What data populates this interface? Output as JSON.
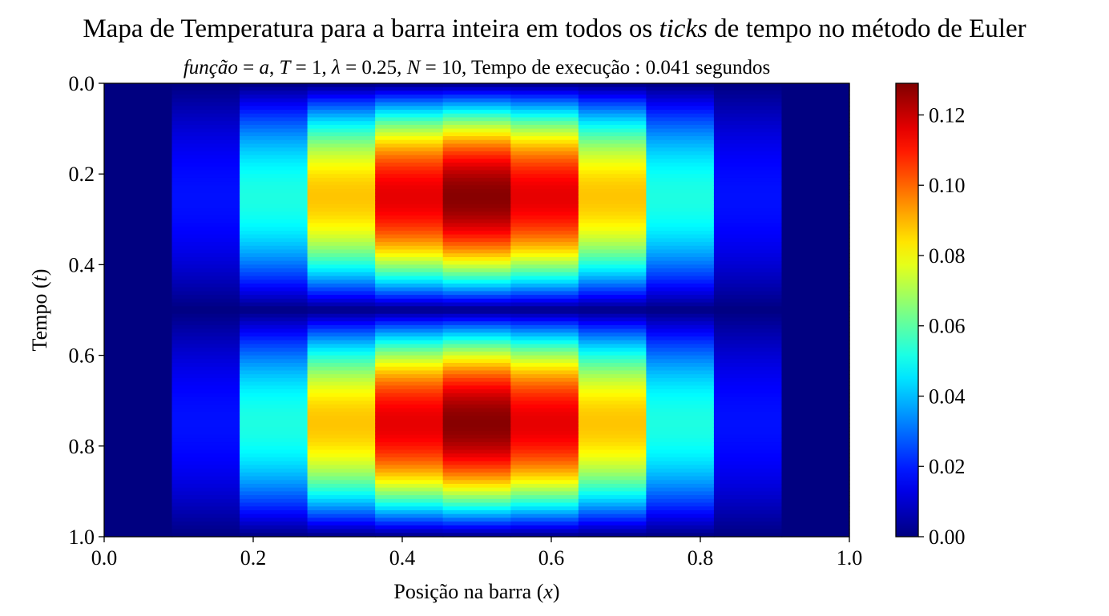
{
  "chart_data": {
    "type": "heatmap",
    "title": {
      "before": "Mapa de Temperatura para a barra inteira em todos os ",
      "emph": "ticks",
      "after": " de tempo no método de Euler"
    },
    "subtitle": {
      "parts": [
        {
          "text": "função",
          "italic": true
        },
        {
          "text": " = ",
          "italic": false
        },
        {
          "text": "a",
          "italic": true
        },
        {
          "text": ",  ",
          "italic": false
        },
        {
          "text": "T",
          "italic": true
        },
        {
          "text": " = 1,  ",
          "italic": false
        },
        {
          "text": "λ",
          "italic": true
        },
        {
          "text": " = 0.25,  ",
          "italic": false
        },
        {
          "text": "N",
          "italic": true
        },
        {
          "text": " = 10,  Tempo de execução :  0.041 segundos",
          "italic": false
        }
      ]
    },
    "xlabel": {
      "text": "Posição na barra (",
      "var": "x",
      "close": ")"
    },
    "ylabel": {
      "text": "Tempo (",
      "var": "t",
      "close": ")"
    },
    "xlim": [
      0.0,
      1.0
    ],
    "ylim": [
      0.0,
      1.0
    ],
    "y_inverted": true,
    "xticks": [
      "0.0",
      "0.2",
      "0.4",
      "0.6",
      "0.8",
      "1.0"
    ],
    "yticks": [
      "0.0",
      "0.2",
      "0.4",
      "0.6",
      "0.8",
      "1.0"
    ],
    "grid": false,
    "colormap": "jet",
    "columns": 11,
    "column_edges": [
      0.0,
      0.0909,
      0.1818,
      0.2727,
      0.3636,
      0.4545,
      0.5455,
      0.6364,
      0.7273,
      0.8182,
      0.9091,
      1.0
    ],
    "column_peaks": [
      0.0,
      0.018,
      0.052,
      0.088,
      0.116,
      0.128,
      0.116,
      0.088,
      0.052,
      0.018,
      0.0
    ],
    "time_profile": "abs(sin(2*pi*t))",
    "colorbar": {
      "min": 0.0,
      "max": 0.129,
      "ticks": [
        "0.00",
        "0.02",
        "0.04",
        "0.06",
        "0.08",
        "0.10",
        "0.12"
      ]
    }
  }
}
